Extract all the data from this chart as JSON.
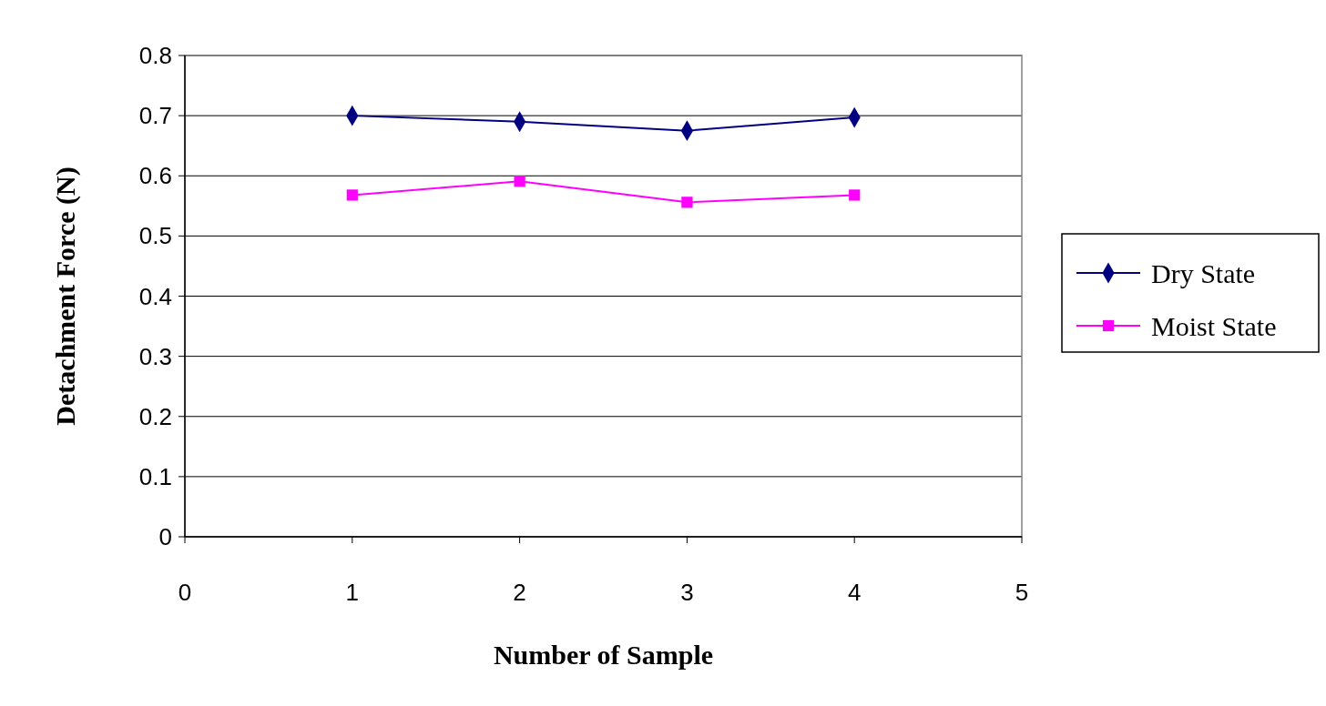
{
  "chart_data": {
    "type": "line",
    "xlabel": "Number of Sample",
    "ylabel": "Detachment Force (N)",
    "x": [
      1,
      2,
      3,
      4
    ],
    "series": [
      {
        "name": "Dry State",
        "color": "#000080",
        "marker": "diamond",
        "values": [
          0.7,
          0.69,
          0.675,
          0.697
        ]
      },
      {
        "name": "Moist State",
        "color": "#ff00ff",
        "marker": "square",
        "values": [
          0.568,
          0.591,
          0.556,
          0.568
        ]
      }
    ],
    "xlim": [
      0,
      5
    ],
    "xticks": [
      0,
      1,
      2,
      3,
      4,
      5
    ],
    "ylim": [
      0,
      0.8
    ],
    "yticks": [
      0,
      0.1,
      0.2,
      0.3,
      0.4,
      0.5,
      0.6,
      0.7,
      0.8
    ],
    "grid": "y",
    "legend": "right",
    "line_style": "solid"
  }
}
